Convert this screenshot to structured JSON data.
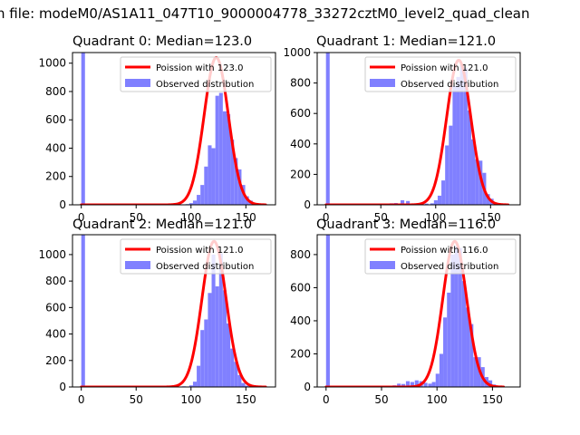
{
  "suptitle": "n file: modeM0/AS1A11_047T10_9000004778_33272cztM0_level2_quad_clean",
  "colors": {
    "poisson_line": "#ff0000",
    "observed_bar": "#8080ff",
    "background": "#ffffff",
    "axis": "#000000"
  },
  "chart_data": [
    {
      "type": "bar",
      "title": "Quadrant 0: Median=123.0",
      "xlabel": "",
      "ylabel": "",
      "xlim": [
        -8,
        177
      ],
      "ylim": [
        0,
        1075
      ],
      "xticks": [
        0,
        50,
        100,
        150
      ],
      "yticks": [
        0,
        200,
        400,
        600,
        800,
        1000
      ],
      "legend": {
        "placement": "top-right",
        "entries": [
          "Poission with 123.0",
          "Observed distribution"
        ]
      },
      "median": 123.0,
      "series": [
        {
          "name": "Observed distribution",
          "kind": "histogram",
          "bin_width": 3.38,
          "bins": [
            {
              "x": 0,
              "y": 1075
            },
            {
              "x": 81,
              "y": 3
            },
            {
              "x": 88,
              "y": 4
            },
            {
              "x": 95,
              "y": 5
            },
            {
              "x": 98.4,
              "y": 12
            },
            {
              "x": 101.8,
              "y": 30
            },
            {
              "x": 105.2,
              "y": 70
            },
            {
              "x": 108.6,
              "y": 140
            },
            {
              "x": 112.0,
              "y": 270
            },
            {
              "x": 115.4,
              "y": 420
            },
            {
              "x": 118.8,
              "y": 400
            },
            {
              "x": 122.2,
              "y": 770
            },
            {
              "x": 125.6,
              "y": 790
            },
            {
              "x": 129.0,
              "y": 660
            },
            {
              "x": 132.4,
              "y": 640
            },
            {
              "x": 135.8,
              "y": 460
            },
            {
              "x": 139.2,
              "y": 330
            },
            {
              "x": 142.6,
              "y": 250
            },
            {
              "x": 146.0,
              "y": 140
            },
            {
              "x": 149.4,
              "y": 60
            },
            {
              "x": 152.8,
              "y": 30
            },
            {
              "x": 156.2,
              "y": 8
            }
          ]
        },
        {
          "name": "Poission with 123.0",
          "kind": "line",
          "lambda": 123.0,
          "peak": 1040,
          "x_range": [
            0,
            168
          ]
        }
      ]
    },
    {
      "type": "bar",
      "title": "Quadrant 1: Median=121.0",
      "xlabel": "",
      "ylabel": "",
      "xlim": [
        -8,
        177
      ],
      "ylim": [
        0,
        1000
      ],
      "xticks": [
        0,
        50,
        100,
        150
      ],
      "yticks": [
        0,
        200,
        400,
        600,
        800,
        1000
      ],
      "legend": {
        "placement": "top-right",
        "entries": [
          "Poission with 121.0",
          "Observed distribution"
        ]
      },
      "median": 121.0,
      "series": [
        {
          "name": "Observed distribution",
          "kind": "histogram",
          "bin_width": 3.38,
          "bins": [
            {
              "x": 0,
              "y": 1000
            },
            {
              "x": 58,
              "y": 10
            },
            {
              "x": 62,
              "y": 12
            },
            {
              "x": 68,
              "y": 30
            },
            {
              "x": 73,
              "y": 25
            },
            {
              "x": 78,
              "y": 8
            },
            {
              "x": 84,
              "y": 5
            },
            {
              "x": 90,
              "y": 8
            },
            {
              "x": 95,
              "y": 10
            },
            {
              "x": 98.4,
              "y": 30
            },
            {
              "x": 101.8,
              "y": 60
            },
            {
              "x": 105.2,
              "y": 160
            },
            {
              "x": 108.6,
              "y": 390
            },
            {
              "x": 112.0,
              "y": 520
            },
            {
              "x": 115.4,
              "y": 780
            },
            {
              "x": 118.8,
              "y": 840
            },
            {
              "x": 122.2,
              "y": 920
            },
            {
              "x": 125.6,
              "y": 900
            },
            {
              "x": 129.0,
              "y": 620
            },
            {
              "x": 132.4,
              "y": 430
            },
            {
              "x": 135.8,
              "y": 300
            },
            {
              "x": 139.2,
              "y": 290
            },
            {
              "x": 142.6,
              "y": 210
            },
            {
              "x": 146.0,
              "y": 70
            },
            {
              "x": 149.4,
              "y": 40
            },
            {
              "x": 152.8,
              "y": 15
            }
          ]
        },
        {
          "name": "Poission with 121.0",
          "kind": "line",
          "lambda": 121.0,
          "peak": 950,
          "x_range": [
            0,
            166
          ]
        }
      ]
    },
    {
      "type": "bar",
      "title": "Quadrant 2: Median=121.0",
      "xlabel": "",
      "ylabel": "",
      "xlim": [
        -8,
        177
      ],
      "ylim": [
        0,
        1150
      ],
      "xticks": [
        0,
        50,
        100,
        150
      ],
      "yticks": [
        0,
        200,
        400,
        600,
        800,
        1000
      ],
      "legend": {
        "placement": "top-right",
        "entries": [
          "Poission with 121.0",
          "Observed distribution"
        ]
      },
      "median": 121.0,
      "series": [
        {
          "name": "Observed distribution",
          "kind": "histogram",
          "bin_width": 3.38,
          "bins": [
            {
              "x": 0,
              "y": 1150
            },
            {
              "x": 85,
              "y": 3
            },
            {
              "x": 92,
              "y": 5
            },
            {
              "x": 98.4,
              "y": 12
            },
            {
              "x": 101.8,
              "y": 40
            },
            {
              "x": 105.2,
              "y": 160
            },
            {
              "x": 108.6,
              "y": 430
            },
            {
              "x": 112.0,
              "y": 510
            },
            {
              "x": 115.4,
              "y": 710
            },
            {
              "x": 118.8,
              "y": 1000
            },
            {
              "x": 122.2,
              "y": 760
            },
            {
              "x": 125.6,
              "y": 1010
            },
            {
              "x": 129.0,
              "y": 730
            },
            {
              "x": 132.4,
              "y": 480
            },
            {
              "x": 135.8,
              "y": 290
            },
            {
              "x": 139.2,
              "y": 190
            },
            {
              "x": 142.6,
              "y": 90
            },
            {
              "x": 146.0,
              "y": 30
            },
            {
              "x": 149.4,
              "y": 10
            }
          ]
        },
        {
          "name": "Poission with 121.0",
          "kind": "line",
          "lambda": 121.0,
          "peak": 1100,
          "x_range": [
            0,
            168
          ]
        }
      ]
    },
    {
      "type": "bar",
      "title": "Quadrant 3: Median=116.0",
      "xlabel": "",
      "ylabel": "",
      "xlim": [
        -8,
        175
      ],
      "ylim": [
        0,
        920
      ],
      "xticks": [
        0,
        50,
        100,
        150
      ],
      "yticks": [
        0,
        200,
        400,
        600,
        800
      ],
      "legend": {
        "placement": "top-right",
        "entries": [
          "Poission with 116.0",
          "Observed distribution"
        ]
      },
      "median": 116.0,
      "series": [
        {
          "name": "Observed distribution",
          "kind": "histogram",
          "bin_width": 3.38,
          "bins": [
            {
              "x": 0,
              "y": 920
            },
            {
              "x": 50,
              "y": 5
            },
            {
              "x": 55,
              "y": 8
            },
            {
              "x": 60,
              "y": 10
            },
            {
              "x": 64,
              "y": 20
            },
            {
              "x": 68,
              "y": 18
            },
            {
              "x": 72,
              "y": 35
            },
            {
              "x": 76,
              "y": 30
            },
            {
              "x": 80,
              "y": 40
            },
            {
              "x": 84,
              "y": 35
            },
            {
              "x": 88,
              "y": 25
            },
            {
              "x": 92,
              "y": 20
            },
            {
              "x": 95.4,
              "y": 30
            },
            {
              "x": 98.8,
              "y": 80
            },
            {
              "x": 102.2,
              "y": 200
            },
            {
              "x": 105.6,
              "y": 420
            },
            {
              "x": 109.0,
              "y": 570
            },
            {
              "x": 112.4,
              "y": 800
            },
            {
              "x": 115.8,
              "y": 850
            },
            {
              "x": 119.2,
              "y": 840
            },
            {
              "x": 122.6,
              "y": 640
            },
            {
              "x": 126.0,
              "y": 480
            },
            {
              "x": 129.4,
              "y": 380
            },
            {
              "x": 132.8,
              "y": 180
            },
            {
              "x": 136.2,
              "y": 180
            },
            {
              "x": 139.6,
              "y": 120
            },
            {
              "x": 143.0,
              "y": 60
            },
            {
              "x": 146.4,
              "y": 40
            },
            {
              "x": 149.8,
              "y": 15
            }
          ]
        },
        {
          "name": "Poission with 116.0",
          "kind": "line",
          "lambda": 116.0,
          "peak": 880,
          "x_range": [
            0,
            160
          ]
        }
      ]
    }
  ]
}
